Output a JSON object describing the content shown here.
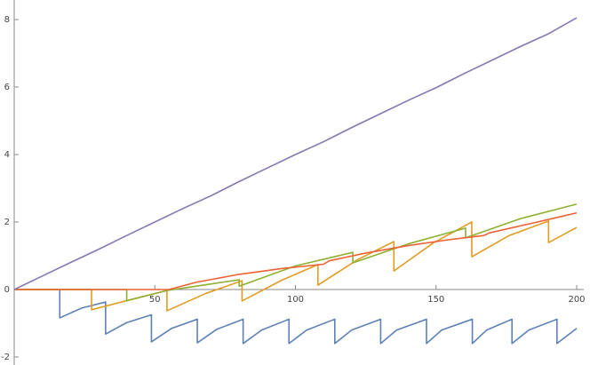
{
  "chart_data": {
    "type": "line",
    "xlim": [
      0,
      200
    ],
    "ylim": [
      -2.2,
      8.5
    ],
    "xticks": [
      50,
      100,
      150,
      200
    ],
    "yticks": [
      -2,
      0,
      2,
      4,
      6,
      8
    ],
    "series": [
      {
        "color": "#5e81b5",
        "x": [
          0,
          16.2,
          16.2,
          24,
          32.5,
          32.5,
          40,
          48.8,
          48.8,
          56,
          65.1,
          65.1,
          72,
          81.4,
          81.4,
          88,
          97.7,
          97.7,
          104,
          114,
          114,
          120,
          130.3,
          130.3,
          136,
          146.6,
          146.6,
          152,
          162.9,
          162.9,
          168,
          177,
          177,
          183,
          193,
          193,
          200
        ],
        "values": [
          0,
          0,
          -0.84,
          -0.55,
          -0.37,
          -1.32,
          -0.98,
          -0.75,
          -1.55,
          -1.15,
          -0.88,
          -1.58,
          -1.18,
          -0.88,
          -1.6,
          -1.2,
          -0.88,
          -1.6,
          -1.2,
          -0.88,
          -1.6,
          -1.2,
          -0.88,
          -1.6,
          -1.2,
          -0.88,
          -1.6,
          -1.2,
          -0.88,
          -1.6,
          -1.2,
          -0.88,
          -1.6,
          -1.2,
          -0.88,
          -1.6,
          -1.15
        ]
      },
      {
        "color": "#e19c24",
        "x": [
          0,
          27.5,
          27.5,
          40,
          54.3,
          54.3,
          68,
          81,
          81,
          95,
          108,
          108,
          122,
          135,
          135,
          149,
          162.7,
          162.7,
          176,
          190,
          190,
          200
        ],
        "values": [
          0,
          0,
          -0.6,
          -0.33,
          -0.03,
          -0.63,
          -0.12,
          0.26,
          -0.34,
          0.27,
          0.74,
          0.13,
          0.88,
          1.42,
          0.55,
          1.38,
          2.0,
          0.97,
          1.6,
          2.03,
          1.39,
          1.84
        ]
      },
      {
        "color": "#8fb032",
        "x": [
          0,
          40,
          40,
          54.3,
          68,
          80,
          80,
          100,
          120.4,
          120.4,
          140,
          160.5,
          160.5,
          180,
          200
        ],
        "values": [
          0,
          0,
          -0.33,
          -0.03,
          0.14,
          0.29,
          0.1,
          0.7,
          1.1,
          0.79,
          1.35,
          1.82,
          1.53,
          2.1,
          2.53
        ]
      },
      {
        "color": "#eb6235",
        "x": [
          0,
          55,
          65,
          80,
          95,
          110,
          112,
          125,
          140,
          155,
          167,
          169,
          185,
          200
        ],
        "values": [
          0,
          0,
          0.22,
          0.45,
          0.62,
          0.75,
          0.85,
          1.08,
          1.3,
          1.48,
          1.6,
          1.68,
          1.98,
          2.27
        ]
      },
      {
        "color": "#8778b3",
        "x": [
          0,
          10,
          20,
          30,
          40,
          50,
          60,
          70,
          80,
          90,
          100,
          110,
          120,
          130,
          140,
          150,
          160,
          170,
          180,
          190,
          200
        ],
        "values": [
          0,
          0.4,
          0.8,
          1.19,
          1.6,
          2.0,
          2.4,
          2.78,
          3.2,
          3.6,
          4.0,
          4.38,
          4.8,
          5.2,
          5.6,
          5.98,
          6.4,
          6.8,
          7.2,
          7.58,
          8.05
        ]
      }
    ]
  }
}
